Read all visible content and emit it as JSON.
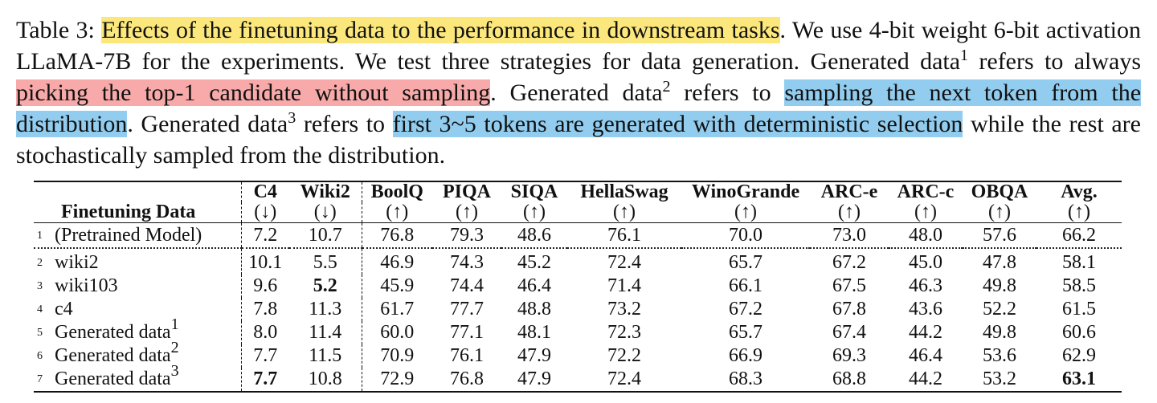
{
  "caption": {
    "label": "Table 3:",
    "s1": "Effects of the finetuning data to the performance in downstream tasks",
    "s2": ". We use 4-bit weight 6-bit activation LLaMA-7B for the experiments. We test three strategies for data generation. Generated data",
    "sup1": "1",
    "s3": " refers to always ",
    "s4": "picking the top-1 candidate without sampling",
    "s5": ". Generated data",
    "sup2": "2",
    "s6": " refers to ",
    "s7": "sampling the next token from the distribution",
    "s8": ". Generated data",
    "sup3": "3",
    "s9": " refers to ",
    "s10": "first 3~5 tokens are generated with deterministic selection",
    "s11": " while the rest are stochastically sampled from the distribution."
  },
  "table": {
    "first_header": "Finetuning Data",
    "columns": [
      {
        "name": "C4",
        "dir": "(↓)"
      },
      {
        "name": "Wiki2",
        "dir": "(↓)"
      },
      {
        "name": "BoolQ",
        "dir": "(↑)"
      },
      {
        "name": "PIQA",
        "dir": "(↑)"
      },
      {
        "name": "SIQA",
        "dir": "(↑)"
      },
      {
        "name": "HellaSwag",
        "dir": "(↑)"
      },
      {
        "name": "WinoGrande",
        "dir": "(↑)"
      },
      {
        "name": "ARC-e",
        "dir": "(↑)"
      },
      {
        "name": "ARC-c",
        "dir": "(↑)"
      },
      {
        "name": "OBQA",
        "dir": "(↑)"
      },
      {
        "name": "Avg.",
        "dir": "(↑)"
      }
    ],
    "rows": [
      {
        "num": "1",
        "label": "(Pretrained Model)",
        "sup": "",
        "values": [
          "7.2",
          "10.7",
          "76.8",
          "79.3",
          "48.6",
          "76.1",
          "70.0",
          "73.0",
          "48.0",
          "57.6",
          "66.2"
        ]
      },
      {
        "num": "2",
        "label": "wiki2",
        "sup": "",
        "values": [
          "10.1",
          "5.5",
          "46.9",
          "74.3",
          "45.2",
          "72.4",
          "65.7",
          "67.2",
          "45.0",
          "47.8",
          "58.1"
        ]
      },
      {
        "num": "3",
        "label": "wiki103",
        "sup": "",
        "values": [
          "9.6",
          "5.2",
          "45.9",
          "74.4",
          "46.4",
          "71.4",
          "66.1",
          "67.5",
          "46.3",
          "49.8",
          "58.5"
        ]
      },
      {
        "num": "4",
        "label": "c4",
        "sup": "",
        "values": [
          "7.8",
          "11.3",
          "61.7",
          "77.7",
          "48.8",
          "73.2",
          "67.2",
          "67.8",
          "43.6",
          "52.2",
          "61.5"
        ]
      },
      {
        "num": "5",
        "label": "Generated data",
        "sup": "1",
        "values": [
          "8.0",
          "11.4",
          "60.0",
          "77.1",
          "48.1",
          "72.3",
          "65.7",
          "67.4",
          "44.2",
          "49.8",
          "60.6"
        ]
      },
      {
        "num": "6",
        "label": "Generated data",
        "sup": "2",
        "values": [
          "7.7",
          "11.5",
          "70.9",
          "76.1",
          "47.9",
          "72.2",
          "66.9",
          "69.3",
          "46.4",
          "53.6",
          "62.9"
        ]
      },
      {
        "num": "7",
        "label": "Generated data",
        "sup": "3",
        "values": [
          "7.7",
          "10.8",
          "72.9",
          "76.8",
          "47.9",
          "72.4",
          "68.3",
          "68.8",
          "44.2",
          "53.2",
          "63.1"
        ]
      }
    ]
  }
}
